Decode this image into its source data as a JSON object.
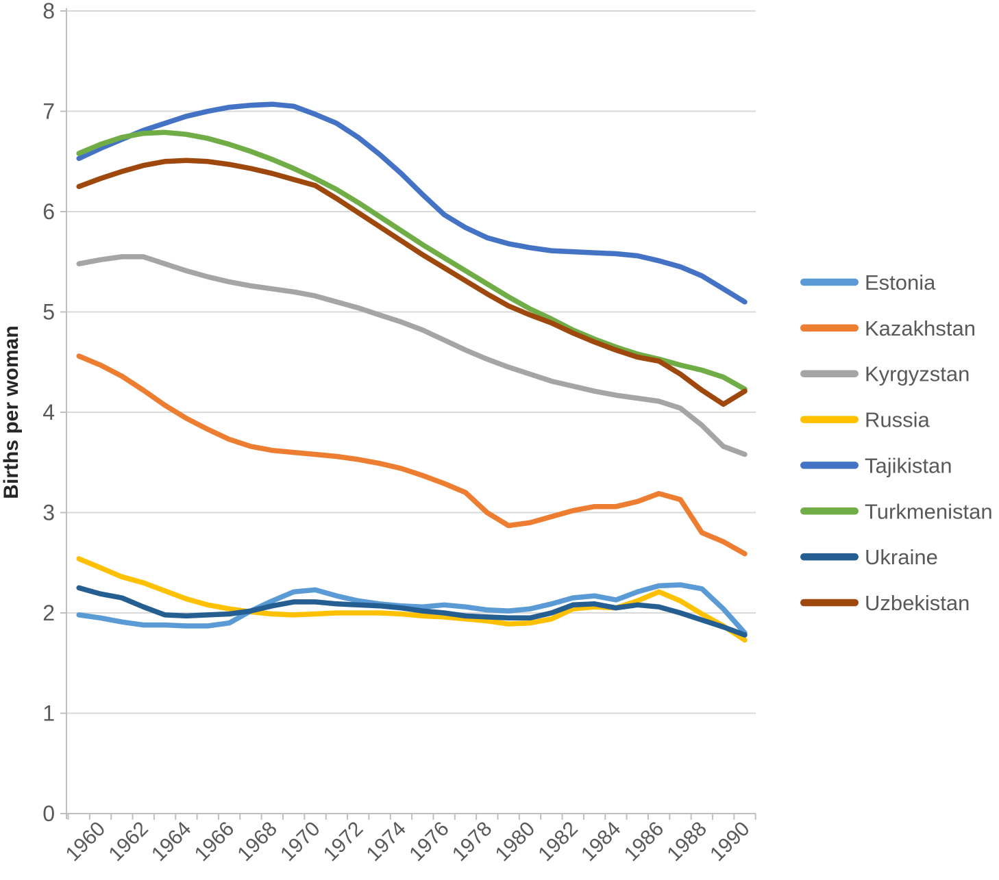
{
  "chart_data": {
    "type": "line",
    "title": "",
    "xlabel": "",
    "ylabel": "Births per woman",
    "x": [
      1960,
      1961,
      1962,
      1963,
      1964,
      1965,
      1966,
      1967,
      1968,
      1969,
      1970,
      1971,
      1972,
      1973,
      1974,
      1975,
      1976,
      1977,
      1978,
      1979,
      1980,
      1981,
      1982,
      1983,
      1984,
      1985,
      1986,
      1987,
      1988,
      1989,
      1990,
      1991
    ],
    "xtick_labels": [
      "1960",
      "1962",
      "1964",
      "1966",
      "1968",
      "1970",
      "1972",
      "1974",
      "1976",
      "1978",
      "1980",
      "1982",
      "1984",
      "1986",
      "1988",
      "1990"
    ],
    "ylim": [
      0,
      8
    ],
    "yticks": [
      0,
      1,
      2,
      3,
      4,
      5,
      6,
      7,
      8
    ],
    "grid": true,
    "legend_position": "right",
    "series": [
      {
        "name": "Estonia",
        "color": "#5B9BD5",
        "values": [
          1.98,
          1.95,
          1.91,
          1.88,
          1.88,
          1.87,
          1.87,
          1.9,
          2.02,
          2.12,
          2.21,
          2.23,
          2.17,
          2.12,
          2.09,
          2.07,
          2.06,
          2.08,
          2.06,
          2.03,
          2.02,
          2.04,
          2.09,
          2.15,
          2.17,
          2.13,
          2.21,
          2.27,
          2.28,
          2.24,
          2.04,
          1.8
        ]
      },
      {
        "name": "Kazakhstan",
        "color": "#ED7D31",
        "values": [
          4.56,
          4.47,
          4.36,
          4.22,
          4.07,
          3.94,
          3.83,
          3.73,
          3.66,
          3.62,
          3.6,
          3.58,
          3.56,
          3.53,
          3.49,
          3.44,
          3.37,
          3.29,
          3.2,
          3.0,
          2.87,
          2.9,
          2.96,
          3.02,
          3.06,
          3.06,
          3.11,
          3.19,
          3.13,
          2.8,
          2.71,
          2.59
        ]
      },
      {
        "name": "Kyrgyzstan",
        "color": "#A5A5A5",
        "values": [
          5.48,
          5.52,
          5.55,
          5.55,
          5.48,
          5.41,
          5.35,
          5.3,
          5.26,
          5.23,
          5.2,
          5.16,
          5.1,
          5.04,
          4.97,
          4.9,
          4.82,
          4.72,
          4.62,
          4.53,
          4.45,
          4.38,
          4.31,
          4.26,
          4.21,
          4.17,
          4.14,
          4.11,
          4.04,
          3.87,
          3.66,
          3.58
        ]
      },
      {
        "name": "Russia",
        "color": "#FFC000",
        "values": [
          2.54,
          2.45,
          2.36,
          2.3,
          2.22,
          2.14,
          2.08,
          2.04,
          2.01,
          1.99,
          1.98,
          1.99,
          2.0,
          2.0,
          2.0,
          1.99,
          1.97,
          1.96,
          1.94,
          1.92,
          1.89,
          1.9,
          1.94,
          2.04,
          2.06,
          2.05,
          2.12,
          2.21,
          2.12,
          1.99,
          1.87,
          1.73
        ]
      },
      {
        "name": "Tajikistan",
        "color": "#4472C4",
        "values": [
          6.53,
          6.63,
          6.72,
          6.81,
          6.88,
          6.95,
          7.0,
          7.04,
          7.06,
          7.07,
          7.05,
          6.97,
          6.88,
          6.74,
          6.57,
          6.38,
          6.17,
          5.97,
          5.84,
          5.74,
          5.68,
          5.64,
          5.61,
          5.6,
          5.59,
          5.58,
          5.56,
          5.51,
          5.45,
          5.36,
          5.23,
          5.1
        ]
      },
      {
        "name": "Turkmenistan",
        "color": "#70AD47",
        "values": [
          6.58,
          6.67,
          6.74,
          6.78,
          6.79,
          6.77,
          6.73,
          6.67,
          6.6,
          6.52,
          6.43,
          6.33,
          6.22,
          6.09,
          5.95,
          5.81,
          5.67,
          5.54,
          5.41,
          5.28,
          5.15,
          5.03,
          4.93,
          4.82,
          4.73,
          4.65,
          4.58,
          4.53,
          4.47,
          4.42,
          4.35,
          4.23
        ]
      },
      {
        "name": "Ukraine",
        "color": "#255E91",
        "values": [
          2.25,
          2.19,
          2.15,
          2.06,
          1.98,
          1.97,
          1.98,
          1.99,
          2.02,
          2.07,
          2.11,
          2.11,
          2.09,
          2.08,
          2.07,
          2.05,
          2.02,
          2.0,
          1.97,
          1.96,
          1.95,
          1.95,
          2.0,
          2.08,
          2.09,
          2.05,
          2.08,
          2.06,
          2.0,
          1.93,
          1.86,
          1.78
        ]
      },
      {
        "name": "Uzbekistan",
        "color": "#9E480E",
        "values": [
          6.25,
          6.33,
          6.4,
          6.46,
          6.5,
          6.51,
          6.5,
          6.47,
          6.43,
          6.38,
          6.32,
          6.26,
          6.13,
          5.99,
          5.85,
          5.71,
          5.57,
          5.44,
          5.31,
          5.18,
          5.06,
          4.97,
          4.89,
          4.79,
          4.7,
          4.62,
          4.55,
          4.51,
          4.38,
          4.22,
          4.08,
          4.21
        ]
      }
    ],
    "draw_order": [
      "Tajikistan",
      "Kazakhstan",
      "Kyrgyzstan",
      "Russia",
      "Estonia",
      "Turkmenistan",
      "Ukraine",
      "Uzbekistan"
    ]
  },
  "style": {
    "grid_color": "#D9D9D9",
    "axis_color": "#BFBFBF",
    "tick_label_color": "#595959",
    "axis_title_color": "#262626",
    "background": "#FFFFFF"
  }
}
